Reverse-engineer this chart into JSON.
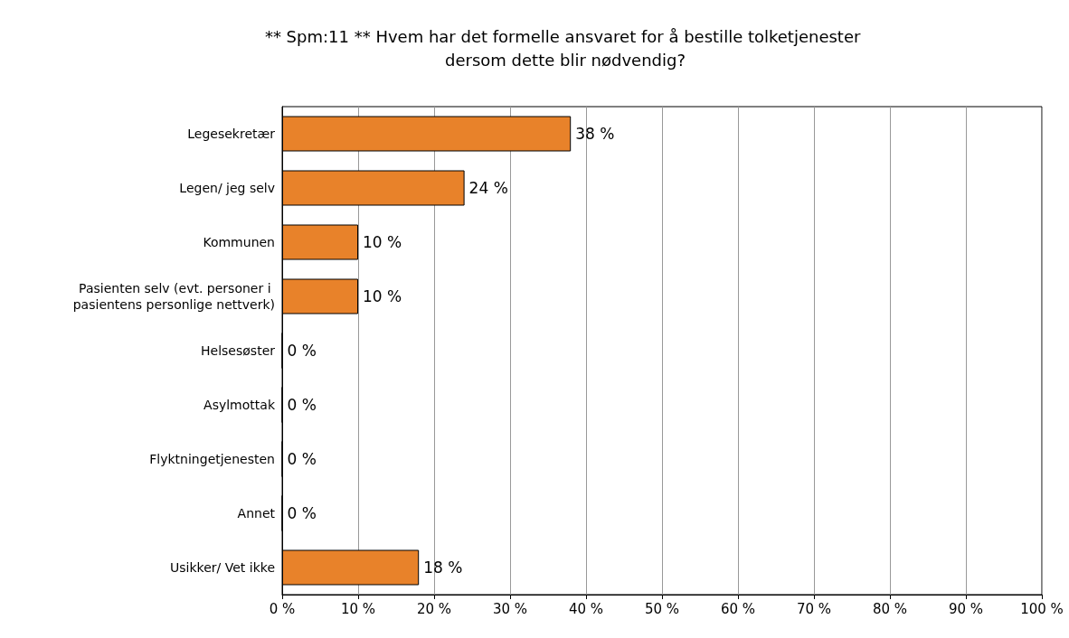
{
  "chart_data": {
    "type": "bar",
    "orientation": "horizontal",
    "title": "** Spm:11 ** Hvem har det formelle ansvaret for å bestille tolketjenester dersom dette blir nødvendig?",
    "categories": [
      "Legesekretær",
      "Legen/ jeg selv",
      "Kommunen",
      "Pasienten selv (evt. personer i pasientens personlige nettverk)",
      "Helsesøster",
      "Asylmottak",
      "Flyktningetjenesten",
      "Annet",
      "Usikker/ Vet ikke"
    ],
    "values": [
      38,
      24,
      10,
      10,
      0,
      0,
      0,
      0,
      18
    ],
    "value_labels": [
      "38 %",
      "24 %",
      "10 %",
      "10 %",
      "0 %",
      "0 %",
      "0 %",
      "0 %",
      "18 %"
    ],
    "color": "#e8822a",
    "xlim": [
      0,
      100
    ],
    "xticks": [
      {
        "value": 0,
        "label": "0 %"
      },
      {
        "value": 10,
        "label": "10 %"
      },
      {
        "value": 20,
        "label": "20 %"
      },
      {
        "value": 30,
        "label": "30 %"
      },
      {
        "value": 40,
        "label": "40 %"
      },
      {
        "value": 50,
        "label": "50 %"
      },
      {
        "value": 60,
        "label": "60 %"
      },
      {
        "value": 70,
        "label": "70 %"
      },
      {
        "value": 80,
        "label": "80 %"
      },
      {
        "value": 90,
        "label": "90 %"
      },
      {
        "value": 100,
        "label": "100 %"
      }
    ],
    "grid": "x"
  }
}
